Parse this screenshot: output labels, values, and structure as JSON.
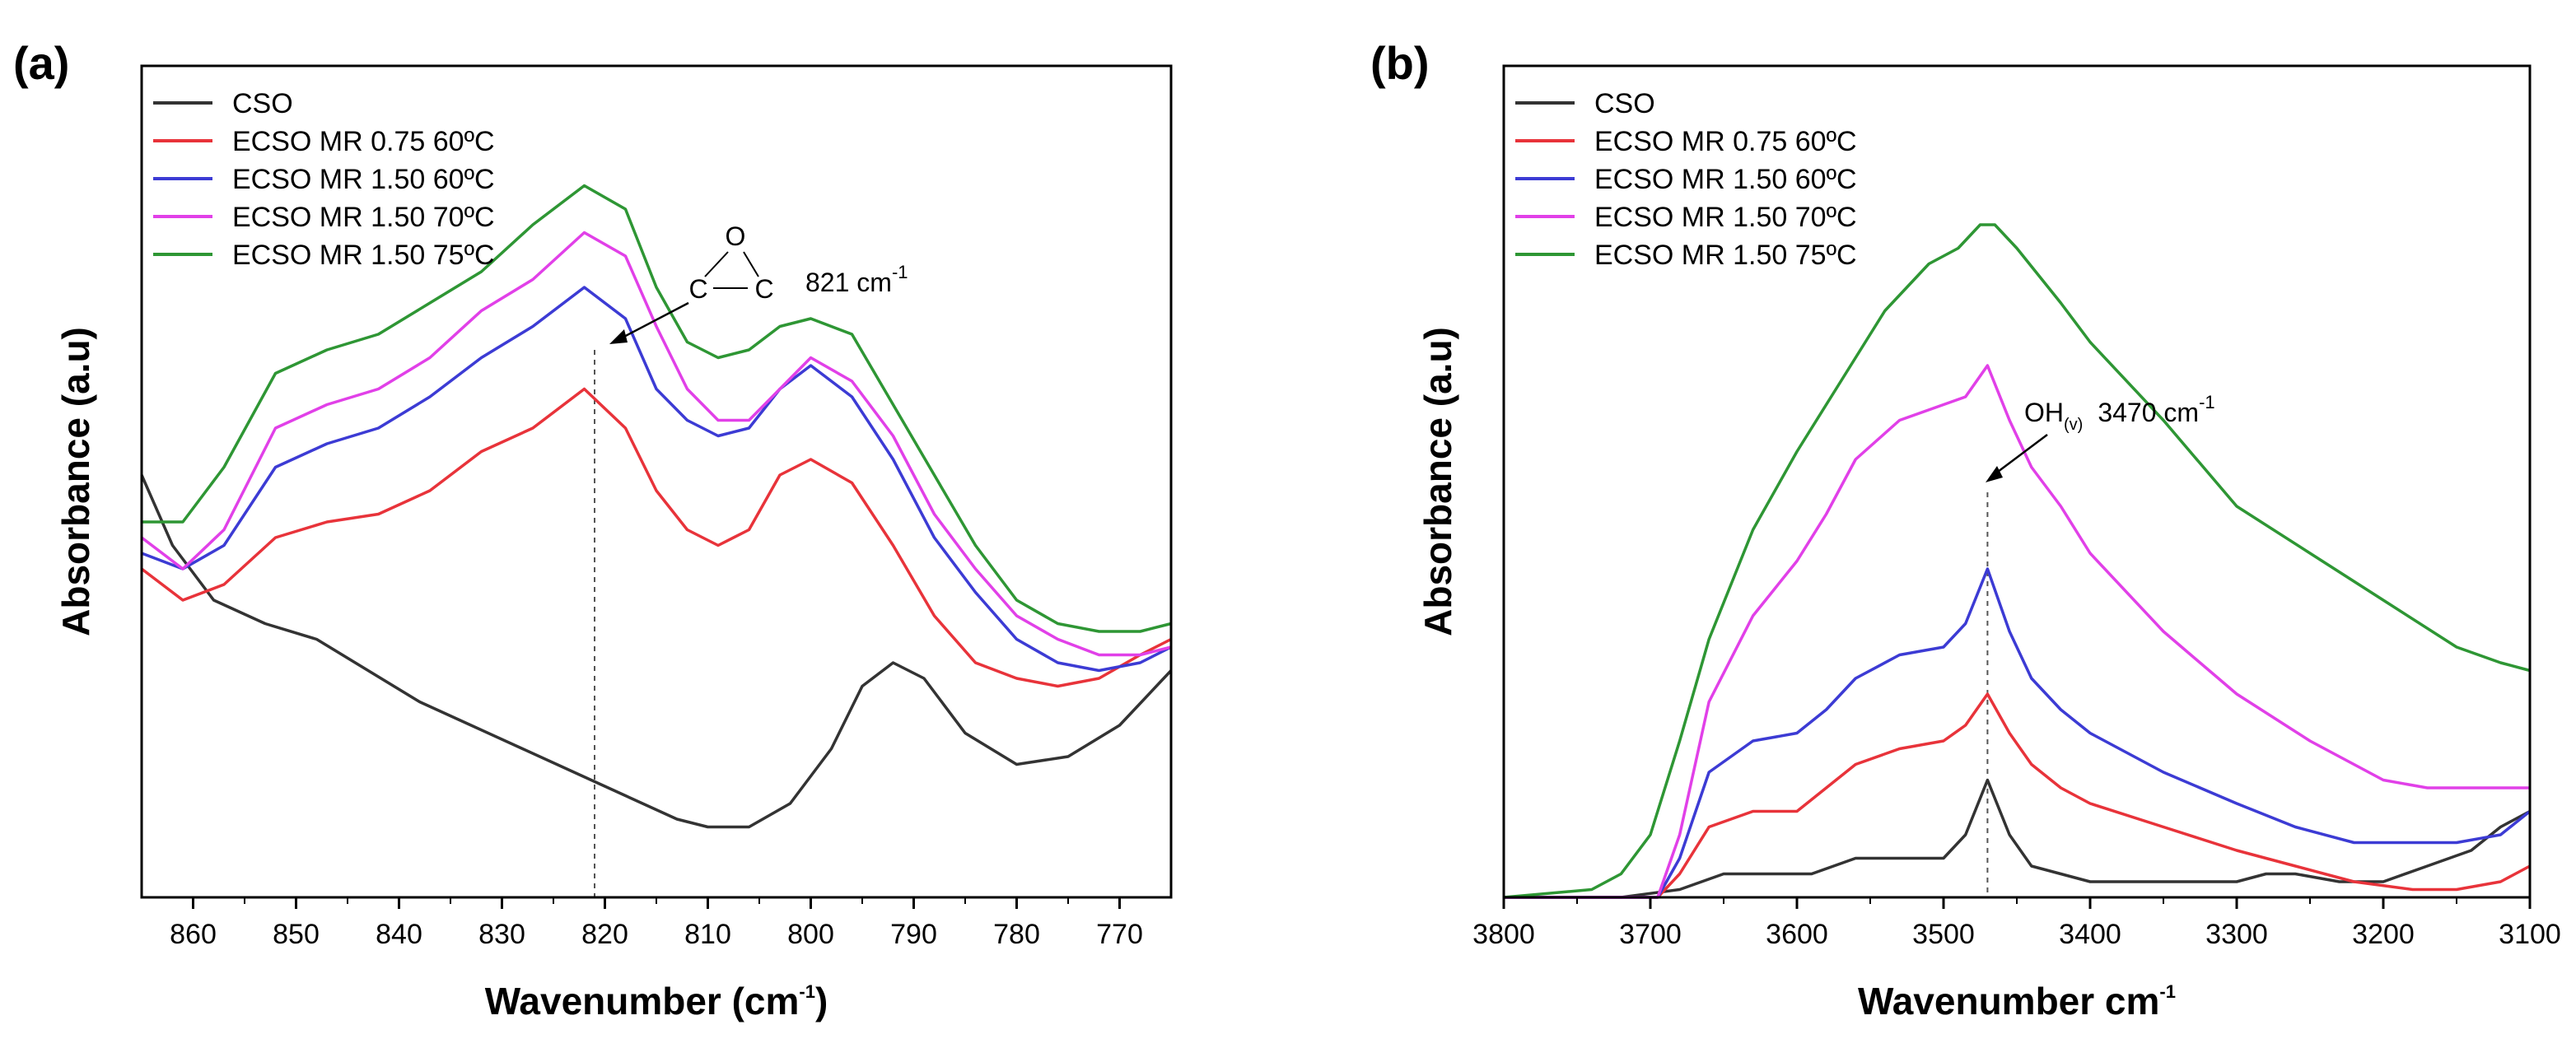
{
  "chart_data": [
    {
      "panel": "(a)",
      "type": "line",
      "xlabel_main": "Wavenumber (cm",
      "xlabel_sup": "-1",
      "xlabel_tail": ")",
      "ylabel": "Absorbance (a.u)",
      "xlim": [
        865,
        765
      ],
      "ylim": [
        0,
        100
      ],
      "xticks": [
        860,
        850,
        840,
        830,
        820,
        810,
        800,
        790,
        780,
        770
      ],
      "legend_position": "top-left",
      "annotation": {
        "label": "821 cm",
        "sup": "-1",
        "x": 821,
        "epoxide_o": "O",
        "epoxide_c1": "C",
        "epoxide_c2": "C"
      },
      "series": [
        {
          "name": "CSO",
          "color": "#333333",
          "x": [
            865,
            862,
            858,
            853,
            848,
            843,
            838,
            833,
            828,
            823,
            818,
            813,
            810,
            806,
            802,
            798,
            795,
            792,
            789,
            785,
            780,
            775,
            770,
            765
          ],
          "y": [
            54,
            45,
            38,
            35,
            33,
            29,
            25,
            22,
            19,
            16,
            13,
            10,
            9,
            9,
            12,
            19,
            27,
            30,
            28,
            21,
            17,
            18,
            22,
            29
          ]
        },
        {
          "name": "ECSO MR 0.75 60ºC",
          "color": "#e8333a",
          "x": [
            865,
            861,
            857,
            852,
            847,
            842,
            837,
            832,
            827,
            822,
            818,
            815,
            812,
            809,
            806,
            803,
            800,
            796,
            792,
            788,
            784,
            780,
            776,
            772,
            768,
            765
          ],
          "y": [
            42,
            38,
            40,
            46,
            48,
            49,
            52,
            57,
            60,
            65,
            60,
            52,
            47,
            45,
            47,
            54,
            56,
            53,
            45,
            36,
            30,
            28,
            27,
            28,
            31,
            33
          ]
        },
        {
          "name": "ECSO MR 1.50 60ºC",
          "color": "#3c3bd4",
          "x": [
            865,
            861,
            857,
            852,
            847,
            842,
            837,
            832,
            827,
            822,
            818,
            815,
            812,
            809,
            806,
            803,
            800,
            796,
            792,
            788,
            784,
            780,
            776,
            772,
            768,
            765
          ],
          "y": [
            44,
            42,
            45,
            55,
            58,
            60,
            64,
            69,
            73,
            78,
            74,
            65,
            61,
            59,
            60,
            65,
            68,
            64,
            56,
            46,
            39,
            33,
            30,
            29,
            30,
            32
          ]
        },
        {
          "name": "ECSO MR 1.50 70ºC",
          "color": "#e140e8",
          "x": [
            865,
            861,
            857,
            852,
            847,
            842,
            837,
            832,
            827,
            822,
            818,
            815,
            812,
            809,
            806,
            803,
            800,
            796,
            792,
            788,
            784,
            780,
            776,
            772,
            768,
            765
          ],
          "y": [
            46,
            42,
            47,
            60,
            63,
            65,
            69,
            75,
            79,
            85,
            82,
            73,
            65,
            61,
            61,
            65,
            69,
            66,
            59,
            49,
            42,
            36,
            33,
            31,
            31,
            32
          ]
        },
        {
          "name": "ECSO MR 1.50 75ºC",
          "color": "#2e9634",
          "x": [
            865,
            861,
            857,
            852,
            847,
            842,
            837,
            832,
            827,
            822,
            818,
            815,
            812,
            809,
            806,
            803,
            800,
            796,
            792,
            788,
            784,
            780,
            776,
            772,
            768,
            765
          ],
          "y": [
            48,
            48,
            55,
            67,
            70,
            72,
            76,
            80,
            86,
            91,
            88,
            78,
            71,
            69,
            70,
            73,
            74,
            72,
            63,
            54,
            45,
            38,
            35,
            34,
            34,
            35
          ]
        }
      ]
    },
    {
      "panel": "(b)",
      "type": "line",
      "xlabel_main": "Wavenumber cm",
      "xlabel_sup": "-1",
      "xlabel_tail": "",
      "ylabel": "Absorbance (a.u)",
      "xlim": [
        3800,
        3100
      ],
      "ylim": [
        0,
        100
      ],
      "xticks": [
        3800,
        3700,
        3600,
        3500,
        3400,
        3300,
        3200,
        3100
      ],
      "legend_position": "top-left",
      "annotation": {
        "label": "3470 cm",
        "sup": "-1",
        "x": 3470,
        "oh_main": "OH",
        "oh_sub": "(v)"
      },
      "series": [
        {
          "name": "CSO",
          "color": "#333333",
          "x": [
            3800,
            3720,
            3680,
            3650,
            3620,
            3590,
            3560,
            3530,
            3500,
            3485,
            3470,
            3455,
            3440,
            3420,
            3400,
            3350,
            3300,
            3280,
            3260,
            3230,
            3200,
            3170,
            3140,
            3120,
            3100
          ],
          "y": [
            0,
            0,
            1,
            3,
            3,
            3,
            5,
            5,
            5,
            8,
            15,
            8,
            4,
            3,
            2,
            2,
            2,
            3,
            3,
            2,
            2,
            4,
            6,
            9,
            11
          ]
        },
        {
          "name": "ECSO MR 0.75 60ºC",
          "color": "#e8333a",
          "x": [
            3800,
            3720,
            3695,
            3680,
            3660,
            3630,
            3600,
            3580,
            3560,
            3530,
            3500,
            3485,
            3470,
            3455,
            3440,
            3420,
            3400,
            3350,
            3300,
            3260,
            3220,
            3180,
            3150,
            3120,
            3100
          ],
          "y": [
            0,
            0,
            0,
            3,
            9,
            11,
            11,
            14,
            17,
            19,
            20,
            22,
            26,
            21,
            17,
            14,
            12,
            9,
            6,
            4,
            2,
            1,
            1,
            2,
            4
          ]
        },
        {
          "name": "ECSO MR 1.50 60ºC",
          "color": "#3c3bd4",
          "x": [
            3800,
            3720,
            3695,
            3680,
            3660,
            3630,
            3600,
            3580,
            3560,
            3530,
            3500,
            3485,
            3470,
            3455,
            3440,
            3420,
            3400,
            3350,
            3300,
            3260,
            3220,
            3180,
            3150,
            3120,
            3100
          ],
          "y": [
            0,
            0,
            0,
            5,
            16,
            20,
            21,
            24,
            28,
            31,
            32,
            35,
            42,
            34,
            28,
            24,
            21,
            16,
            12,
            9,
            7,
            7,
            7,
            8,
            11
          ]
        },
        {
          "name": "ECSO MR 1.50 70ºC",
          "color": "#e140e8",
          "x": [
            3800,
            3720,
            3695,
            3680,
            3660,
            3630,
            3600,
            3580,
            3560,
            3530,
            3500,
            3485,
            3470,
            3455,
            3440,
            3420,
            3400,
            3350,
            3300,
            3250,
            3200,
            3170,
            3140,
            3120,
            3100
          ],
          "y": [
            0,
            0,
            0,
            8,
            25,
            36,
            43,
            49,
            56,
            61,
            63,
            64,
            68,
            61,
            55,
            50,
            44,
            34,
            26,
            20,
            15,
            14,
            14,
            14,
            14
          ]
        },
        {
          "name": "ECSO MR 1.50 75ºC",
          "color": "#2e9634",
          "x": [
            3800,
            3740,
            3720,
            3700,
            3680,
            3660,
            3630,
            3600,
            3570,
            3540,
            3510,
            3490,
            3475,
            3465,
            3450,
            3420,
            3400,
            3350,
            3300,
            3250,
            3200,
            3150,
            3120,
            3100
          ],
          "y": [
            0,
            1,
            3,
            8,
            20,
            33,
            47,
            57,
            66,
            75,
            81,
            83,
            86,
            86,
            83,
            76,
            71,
            61,
            50,
            44,
            38,
            32,
            30,
            29
          ]
        }
      ]
    }
  ]
}
